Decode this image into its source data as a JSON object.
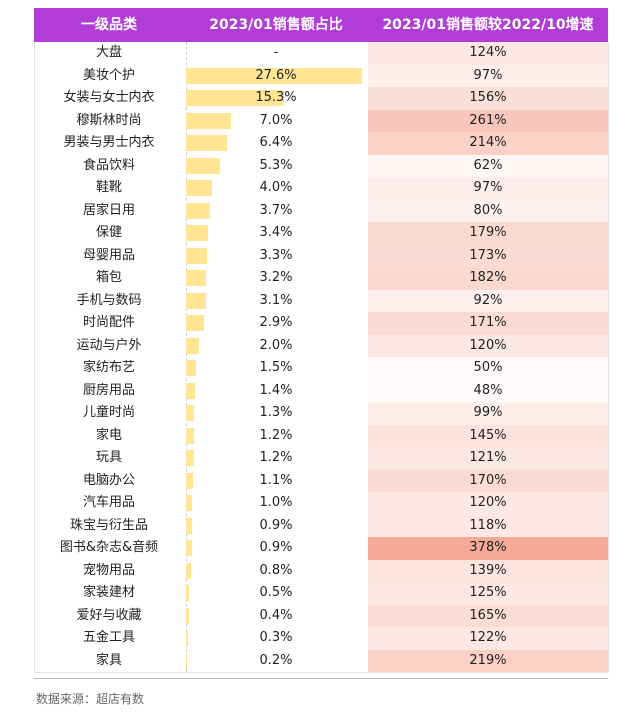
{
  "chart_data": {
    "type": "table",
    "columns": [
      "一级品类",
      "2023/01销售额占比",
      "2023/01销售额较2022/10增速"
    ],
    "rows": [
      {
        "category": "大盘",
        "share": "-",
        "share_value": null,
        "growth": "124%",
        "growth_value": 124
      },
      {
        "category": "美妆个护",
        "share": "27.6%",
        "share_value": 27.6,
        "growth": "97%",
        "growth_value": 97
      },
      {
        "category": "女装与女士内衣",
        "share": "15.3%",
        "share_value": 15.3,
        "growth": "156%",
        "growth_value": 156
      },
      {
        "category": "穆斯林时尚",
        "share": "7.0%",
        "share_value": 7.0,
        "growth": "261%",
        "growth_value": 261
      },
      {
        "category": "男装与男士内衣",
        "share": "6.4%",
        "share_value": 6.4,
        "growth": "214%",
        "growth_value": 214
      },
      {
        "category": "食品饮料",
        "share": "5.3%",
        "share_value": 5.3,
        "growth": "62%",
        "growth_value": 62
      },
      {
        "category": "鞋靴",
        "share": "4.0%",
        "share_value": 4.0,
        "growth": "97%",
        "growth_value": 97
      },
      {
        "category": "居家日用",
        "share": "3.7%",
        "share_value": 3.7,
        "growth": "80%",
        "growth_value": 80
      },
      {
        "category": "保健",
        "share": "3.4%",
        "share_value": 3.4,
        "growth": "179%",
        "growth_value": 179
      },
      {
        "category": "母婴用品",
        "share": "3.3%",
        "share_value": 3.3,
        "growth": "173%",
        "growth_value": 173
      },
      {
        "category": "箱包",
        "share": "3.2%",
        "share_value": 3.2,
        "growth": "182%",
        "growth_value": 182
      },
      {
        "category": "手机与数码",
        "share": "3.1%",
        "share_value": 3.1,
        "growth": "92%",
        "growth_value": 92
      },
      {
        "category": "时尚配件",
        "share": "2.9%",
        "share_value": 2.9,
        "growth": "171%",
        "growth_value": 171
      },
      {
        "category": "运动与户外",
        "share": "2.0%",
        "share_value": 2.0,
        "growth": "120%",
        "growth_value": 120
      },
      {
        "category": "家纺布艺",
        "share": "1.5%",
        "share_value": 1.5,
        "growth": "50%",
        "growth_value": 50
      },
      {
        "category": "厨房用品",
        "share": "1.4%",
        "share_value": 1.4,
        "growth": "48%",
        "growth_value": 48
      },
      {
        "category": "儿童时尚",
        "share": "1.3%",
        "share_value": 1.3,
        "growth": "99%",
        "growth_value": 99
      },
      {
        "category": "家电",
        "share": "1.2%",
        "share_value": 1.2,
        "growth": "145%",
        "growth_value": 145
      },
      {
        "category": "玩具",
        "share": "1.2%",
        "share_value": 1.2,
        "growth": "121%",
        "growth_value": 121
      },
      {
        "category": "电脑办公",
        "share": "1.1%",
        "share_value": 1.1,
        "growth": "170%",
        "growth_value": 170
      },
      {
        "category": "汽车用品",
        "share": "1.0%",
        "share_value": 1.0,
        "growth": "120%",
        "growth_value": 120
      },
      {
        "category": "珠宝与衍生品",
        "share": "0.9%",
        "share_value": 0.9,
        "growth": "118%",
        "growth_value": 118
      },
      {
        "category": "图书&杂志&音频",
        "share": "0.9%",
        "share_value": 0.9,
        "growth": "378%",
        "growth_value": 378
      },
      {
        "category": "宠物用品",
        "share": "0.8%",
        "share_value": 0.8,
        "growth": "139%",
        "growth_value": 139
      },
      {
        "category": "家装建材",
        "share": "0.5%",
        "share_value": 0.5,
        "growth": "125%",
        "growth_value": 125
      },
      {
        "category": "爱好与收藏",
        "share": "0.4%",
        "share_value": 0.4,
        "growth": "165%",
        "growth_value": 165
      },
      {
        "category": "五金工具",
        "share": "0.3%",
        "share_value": 0.3,
        "growth": "122%",
        "growth_value": 122
      },
      {
        "category": "家具",
        "share": "0.2%",
        "share_value": 0.2,
        "growth": "219%",
        "growth_value": 219
      }
    ]
  },
  "source": "数据来源：超店有数",
  "colors": {
    "header_bg": "#b13dd6",
    "header_text": "#ffffff",
    "share_bar": "#ffe594",
    "growth_heat": "#f4a08c"
  }
}
